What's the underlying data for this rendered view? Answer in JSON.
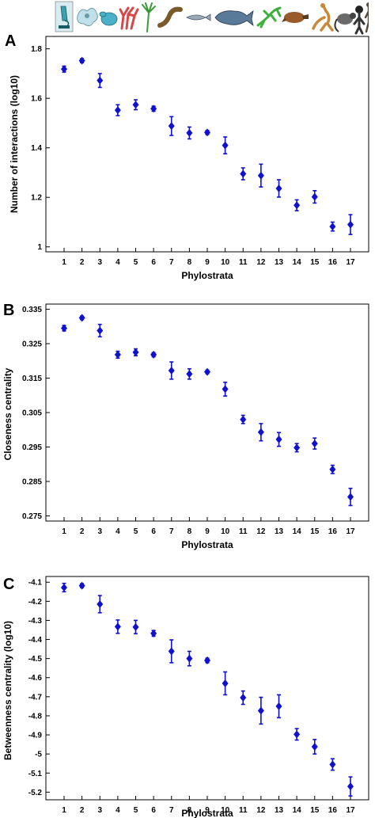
{
  "organisms": [
    "microscope-icon",
    "amoeba-icon",
    "yeast-icon",
    "coral-icon",
    "hydra-icon",
    "worm-icon",
    "fish-icon",
    "coelacanth-icon",
    "lizard-icon",
    "platypus-icon",
    "kangaroo-icon",
    "lemur-icon",
    "primate-icon",
    "human-icon"
  ],
  "colors": {
    "marker": "#1010d0",
    "axis": "#000000"
  },
  "chart_data": [
    {
      "type": "scatter",
      "panel": "A",
      "title": "",
      "xlabel": "Phylostrata",
      "ylabel": "Number of interactions (log10)",
      "ylim": [
        0.98,
        1.85
      ],
      "yticks": [
        1,
        1.2,
        1.4,
        1.6,
        1.8
      ],
      "ytick_labels": [
        "1",
        "1.2",
        "1.4",
        "1.6",
        "1.8"
      ],
      "x": [
        1,
        2,
        3,
        4,
        5,
        6,
        7,
        8,
        9,
        10,
        11,
        12,
        13,
        14,
        15,
        16,
        17
      ],
      "values": [
        1.718,
        1.752,
        1.672,
        1.552,
        1.574,
        1.558,
        1.488,
        1.46,
        1.462,
        1.41,
        1.295,
        1.288,
        1.236,
        1.168,
        1.202,
        1.082,
        1.09
      ],
      "errors": [
        0.012,
        0.008,
        0.028,
        0.022,
        0.02,
        0.01,
        0.038,
        0.024,
        0.008,
        0.034,
        0.024,
        0.046,
        0.035,
        0.022,
        0.025,
        0.018,
        0.04
      ]
    },
    {
      "type": "scatter",
      "panel": "B",
      "title": "",
      "xlabel": "Phylostrata",
      "ylabel": "Closeness centrality",
      "ylim": [
        0.2735,
        0.3365
      ],
      "yticks": [
        0.275,
        0.285,
        0.295,
        0.305,
        0.315,
        0.325,
        0.335
      ],
      "ytick_labels": [
        "0.275",
        "0.285",
        "0.295",
        "0.305",
        "0.315",
        "0.325",
        "0.335"
      ],
      "x": [
        1,
        2,
        3,
        4,
        5,
        6,
        7,
        8,
        9,
        10,
        11,
        12,
        13,
        14,
        15,
        16,
        17
      ],
      "values": [
        0.3295,
        0.3325,
        0.3288,
        0.3218,
        0.3225,
        0.3218,
        0.3172,
        0.3162,
        0.3168,
        0.3118,
        0.303,
        0.2993,
        0.2972,
        0.2948,
        0.296,
        0.2885,
        0.2805
      ],
      "errors": [
        0.0008,
        0.0005,
        0.0018,
        0.001,
        0.001,
        0.0006,
        0.0025,
        0.0015,
        0.0005,
        0.002,
        0.0012,
        0.0025,
        0.002,
        0.0012,
        0.0016,
        0.0012,
        0.0025
      ]
    },
    {
      "type": "scatter",
      "panel": "C",
      "title": "",
      "xlabel": "Phylostrata",
      "ylabel": "Betweenness centrality (log10)",
      "ylim": [
        -5.24,
        -4.07
      ],
      "yticks": [
        -4.1,
        -4.2,
        -4.3,
        -4.4,
        -4.5,
        -4.6,
        -4.7,
        -4.8,
        -4.9,
        -5,
        -5.1,
        -5.2
      ],
      "ytick_labels": [
        "-4.1",
        "-4.2",
        "-4.3",
        "-4.4",
        "-4.5",
        "-4.6",
        "-4.7",
        "-4.8",
        "-4.9",
        "-5",
        "-5.1",
        "-5.2"
      ],
      "x": [
        1,
        2,
        3,
        4,
        5,
        6,
        7,
        8,
        9,
        10,
        11,
        12,
        13,
        14,
        15,
        16,
        17
      ],
      "values": [
        -4.128,
        -4.118,
        -4.215,
        -4.333,
        -4.335,
        -4.368,
        -4.462,
        -4.5,
        -4.51,
        -4.63,
        -4.705,
        -4.773,
        -4.75,
        -4.897,
        -4.962,
        -5.055,
        -5.17
      ],
      "errors": [
        0.022,
        0.01,
        0.045,
        0.035,
        0.035,
        0.015,
        0.06,
        0.038,
        0.012,
        0.06,
        0.035,
        0.07,
        0.06,
        0.03,
        0.038,
        0.03,
        0.05
      ]
    }
  ]
}
